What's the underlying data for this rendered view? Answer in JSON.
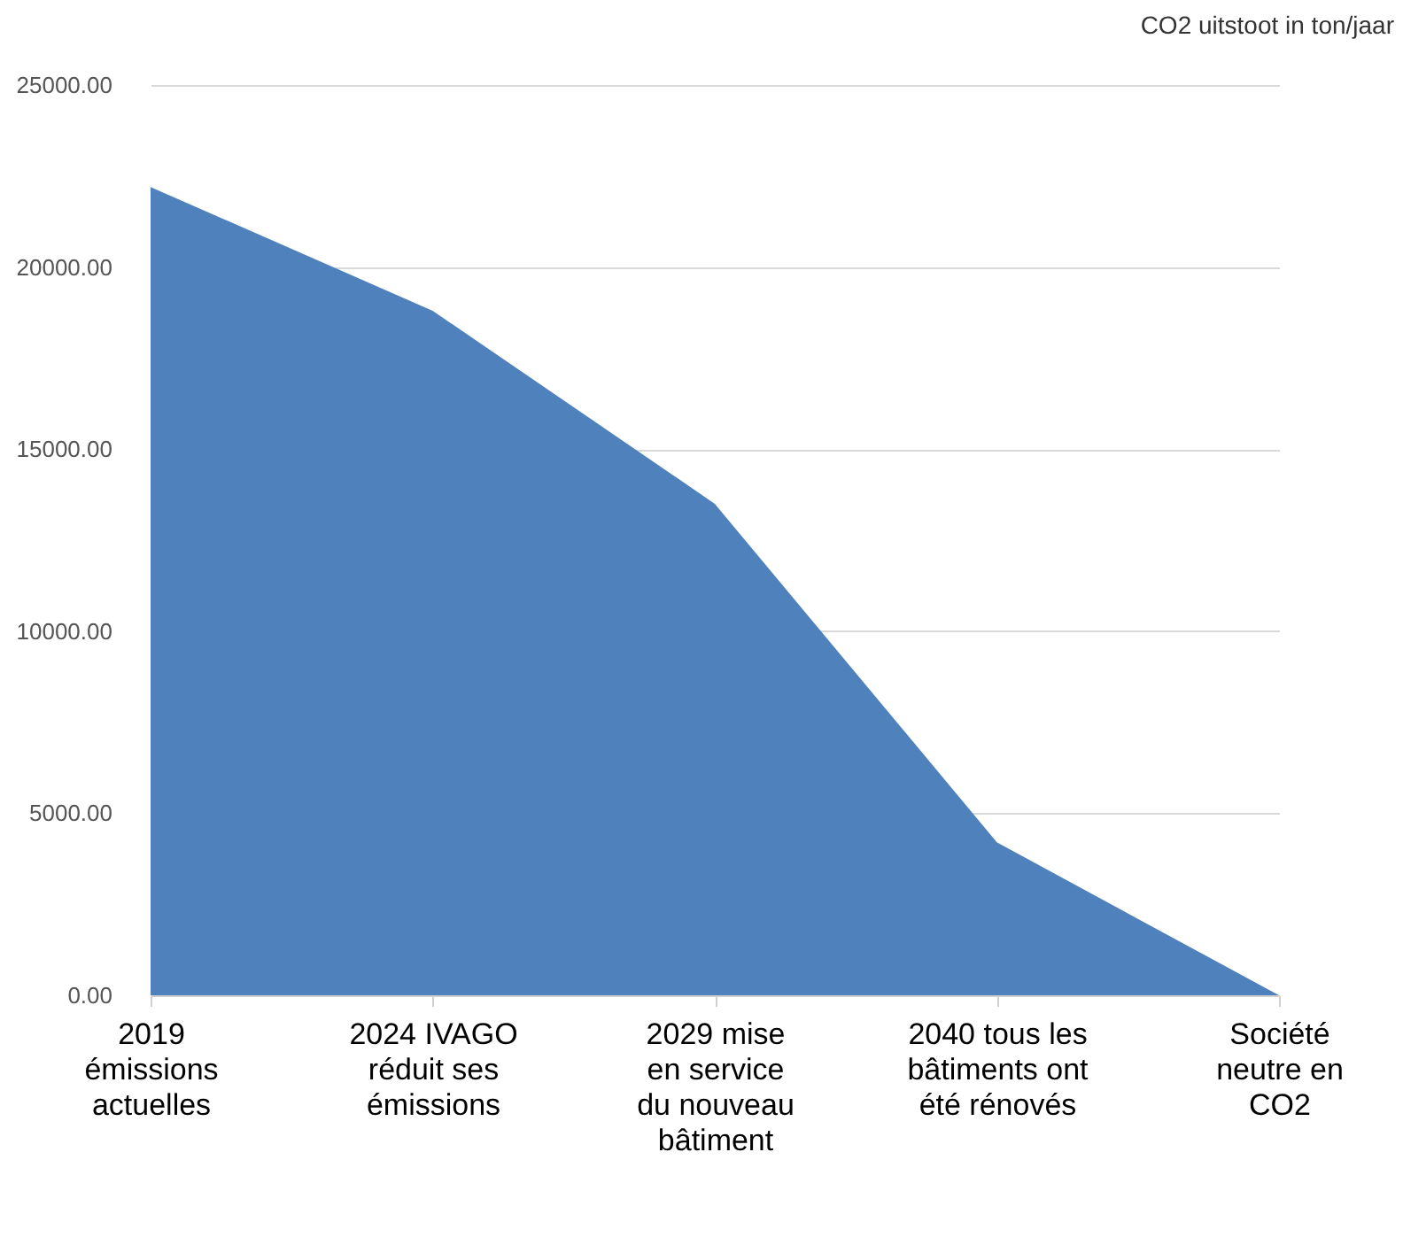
{
  "chart_data": {
    "type": "area",
    "title": "CO2 uitstoot in ton/jaar",
    "categories": [
      "2019\némissions\nactuelles",
      "2024 IVAGO\nréduit ses\némissions",
      "2029 mise\nen service\ndu nouveau\nbâtiment",
      "2040 tous les\nbâtiments ont\nété rénovés",
      "Société\nneutre en\nCO2"
    ],
    "series": [
      {
        "color": "#4f81bd",
        "values": [
          22200,
          18800,
          13500,
          4200,
          0
        ]
      }
    ],
    "ylim": [
      0,
      25000
    ],
    "yticks": [
      {
        "value": 0,
        "label": "0.00"
      },
      {
        "value": 5000,
        "label": "5000.00"
      },
      {
        "value": 10000,
        "label": "10000.00"
      },
      {
        "value": 15000,
        "label": "15000.00"
      },
      {
        "value": 20000,
        "label": "20000.00"
      },
      {
        "value": 25000,
        "label": "25000.00"
      }
    ],
    "grid": "y"
  }
}
